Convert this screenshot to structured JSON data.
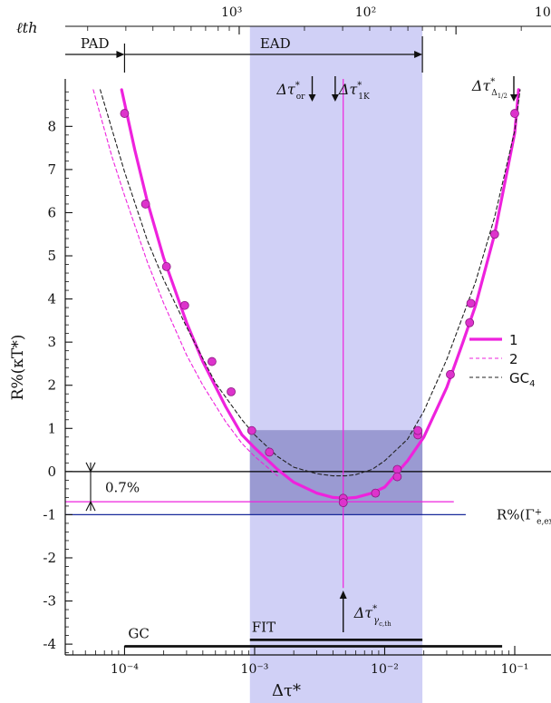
{
  "chart_data": {
    "type": "scatter",
    "xlabel": "Δτ*",
    "ylabel": "R%(κT*)",
    "x_scale": "log",
    "xlim": [
      3.5e-05,
      0.19
    ],
    "ylim": [
      -4.25,
      9.1
    ],
    "yticks": [
      -4,
      -3,
      -2,
      -1,
      0,
      1,
      2,
      3,
      4,
      5,
      6,
      7,
      8
    ],
    "xtick_labels": [
      {
        "value": 0.0001,
        "label": "10⁻⁴"
      },
      {
        "value": 0.001,
        "label": "10⁻³"
      },
      {
        "value": 0.01,
        "label": "10⁻²"
      },
      {
        "value": 0.1,
        "label": "10⁻¹"
      }
    ],
    "top_axis": {
      "label": "ℓth",
      "tick_labels": [
        {
          "value": 0.000667,
          "label": "10³"
        },
        {
          "value": 0.00714,
          "label": "10²"
        },
        {
          "value": 0.164,
          "label": "10"
        }
      ]
    },
    "points": [
      {
        "x": 0.0001,
        "y": 8.3
      },
      {
        "x": 0.000145,
        "y": 6.2
      },
      {
        "x": 0.00021,
        "y": 4.75
      },
      {
        "x": 0.00029,
        "y": 3.85
      },
      {
        "x": 0.00047,
        "y": 2.55
      },
      {
        "x": 0.00066,
        "y": 1.85
      },
      {
        "x": 0.00095,
        "y": 0.95
      },
      {
        "x": 0.0013,
        "y": 0.45
      },
      {
        "x": 0.0048,
        "y": -0.62
      },
      {
        "x": 0.0048,
        "y": -0.72
      },
      {
        "x": 0.0085,
        "y": -0.5
      },
      {
        "x": 0.0125,
        "y": 0.05
      },
      {
        "x": 0.0125,
        "y": -0.12
      },
      {
        "x": 0.018,
        "y": 0.85
      },
      {
        "x": 0.018,
        "y": 0.95
      },
      {
        "x": 0.032,
        "y": 2.25
      },
      {
        "x": 0.045,
        "y": 3.45
      },
      {
        "x": 0.046,
        "y": 3.9
      },
      {
        "x": 0.07,
        "y": 5.5
      },
      {
        "x": 0.1,
        "y": 8.3
      }
    ],
    "series": [
      {
        "name": "1",
        "color": "#ee22dd",
        "style": "solid-thick",
        "x": [
          9.5e-05,
          0.00012,
          0.00015,
          0.0002,
          0.0003,
          0.0004,
          0.0006,
          0.0008,
          0.001,
          0.0015,
          0.002,
          0.003,
          0.004,
          0.005,
          0.006,
          0.008,
          0.01,
          0.015,
          0.02,
          0.03,
          0.04,
          0.05,
          0.07,
          0.1,
          0.107
        ],
        "y": [
          8.85,
          7.45,
          6.25,
          4.95,
          3.45,
          2.55,
          1.5,
          0.85,
          0.55,
          0.05,
          -0.25,
          -0.5,
          -0.6,
          -0.62,
          -0.6,
          -0.5,
          -0.36,
          0.25,
          0.8,
          1.95,
          3.0,
          3.85,
          5.5,
          7.85,
          8.85
        ]
      },
      {
        "name": "2",
        "color": "#ee22dd",
        "style": "dashed-thin",
        "x": [
          5.75e-05,
          8e-05,
          0.0001,
          0.00015,
          0.0002,
          0.0003,
          0.0004,
          0.0006,
          0.0008,
          0.001,
          0.0015
        ],
        "y": [
          8.85,
          7.3,
          6.4,
          4.85,
          3.9,
          2.7,
          2.0,
          1.15,
          0.65,
          0.35,
          -0.1
        ]
      },
      {
        "name": "GC4",
        "color": "#222222",
        "style": "dashed-thin",
        "x": [
          6.5e-05,
          0.0001,
          0.00015,
          0.0002,
          0.0003,
          0.0005,
          0.0008,
          0.001,
          0.0015,
          0.002,
          0.003,
          0.004,
          0.005,
          0.006,
          0.008,
          0.01,
          0.015,
          0.02,
          0.03,
          0.05,
          0.07,
          0.1,
          0.11
        ],
        "y": [
          8.85,
          6.95,
          5.35,
          4.45,
          3.35,
          2.05,
          1.2,
          0.85,
          0.35,
          0.1,
          -0.05,
          -0.1,
          -0.1,
          -0.07,
          0.05,
          0.25,
          0.75,
          1.4,
          2.6,
          4.4,
          5.9,
          7.9,
          8.85
        ]
      }
    ],
    "legend": {
      "placement": "right",
      "entries": [
        {
          "label": "1",
          "color": "#ee22dd",
          "style": "solid-thick"
        },
        {
          "label": "2",
          "color": "#ee22dd",
          "style": "dashed-thin"
        },
        {
          "label": "GC4",
          "color": "#222222",
          "style": "dashed-thin"
        }
      ]
    },
    "bands": [
      {
        "x_range": [
          0.00092,
          0.0195
        ],
        "y_range": "full",
        "color": "#d0d0f6"
      },
      {
        "x_range": [
          0.00092,
          0.0195
        ],
        "y_range": [
          -1.0,
          0.96
        ],
        "color": "#9a9ad2"
      }
    ],
    "reference_lines": {
      "horizontal": [
        {
          "y": 0,
          "x_range": [
            3.5e-05,
            0.19
          ],
          "color": "#000000"
        },
        {
          "y": -0.7,
          "x_range": [
            3.5e-05,
            0.034
          ],
          "color": "#ee22dd"
        },
        {
          "y": -1.0,
          "x_range": [
            3.5e-05,
            0.042
          ],
          "color": "#1a2a9a",
          "label": "R%(Γ+e,exact)"
        }
      ],
      "vertical": [
        {
          "x": 0.0048,
          "y_range": [
            -2.7,
            9.1
          ],
          "color": "#ee22dd"
        }
      ]
    },
    "range_bars": [
      {
        "label": "GC",
        "x_range": [
          0.0001,
          0.08
        ],
        "y": -4.0
      },
      {
        "label": "FIT",
        "x_range": [
          0.00092,
          0.0195
        ],
        "y": -3.85
      }
    ],
    "annotations": {
      "top_ranges": [
        {
          "label": "PAD",
          "from": 3.5e-05,
          "to": 0.0001
        },
        {
          "label": "EAD",
          "from": 0.0001,
          "to": 0.0195
        }
      ],
      "markers": [
        {
          "label": "Δτ*or",
          "x": 0.0026,
          "direction": "down"
        },
        {
          "label": "Δτ*1K",
          "x": 0.0043,
          "direction": "down"
        },
        {
          "label": "Δτ*Δ1/2",
          "x": 0.1,
          "direction": "down"
        },
        {
          "label": "Δτ*γc,th",
          "x": 0.0048,
          "direction": "up"
        }
      ],
      "offset_label": "0.7%"
    }
  }
}
